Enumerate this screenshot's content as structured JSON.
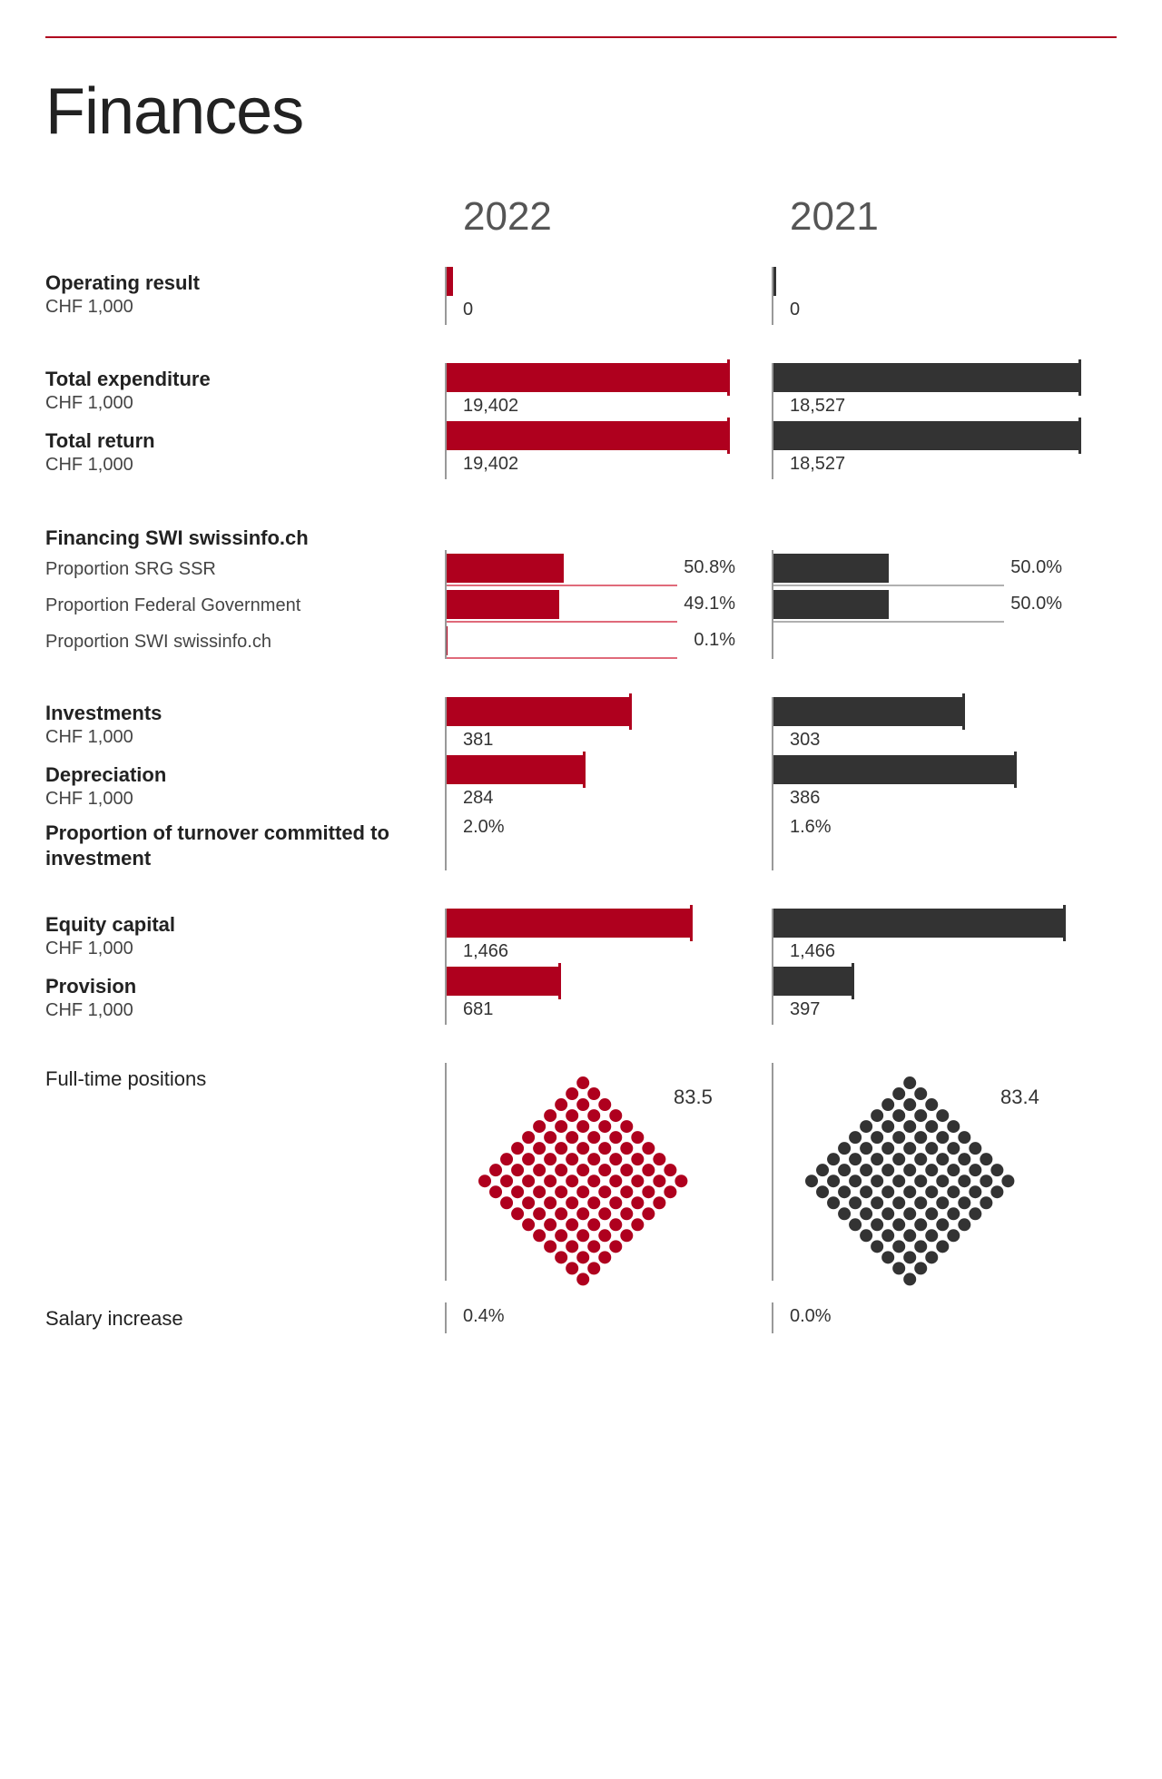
{
  "title": "Finances",
  "years": {
    "current": "2022",
    "prior": "2021"
  },
  "colors": {
    "current": "#af001e",
    "prior": "#333333",
    "rule": "#af001e",
    "axis": "#999999",
    "prop_base_current": "#e06a7a",
    "prop_base_prior": "#b0b0b0"
  },
  "unit_label": "CHF 1,000",
  "rows": {
    "operating_result": {
      "label": "Operating result",
      "current": {
        "display": "0",
        "width_pct": 2
      },
      "prior": {
        "display": "0",
        "width_pct": 1
      }
    },
    "total_expenditure": {
      "label": "Total expenditure",
      "current": {
        "display": "19,402",
        "width_pct": 92
      },
      "prior": {
        "display": "18,527",
        "width_pct": 100
      }
    },
    "total_return": {
      "label": "Total return",
      "current": {
        "display": "19,402",
        "width_pct": 92
      },
      "prior": {
        "display": "18,527",
        "width_pct": 100
      }
    },
    "financing_heading": "Financing SWI swissinfo.ch",
    "prop_srg": {
      "label": "Proportion SRG SSR",
      "current": {
        "display": "50.8%",
        "fill_pct": 50.8
      },
      "prior": {
        "display": "50.0%",
        "fill_pct": 50.0
      }
    },
    "prop_fed": {
      "label": "Proportion Federal Government",
      "current": {
        "display": "49.1%",
        "fill_pct": 49.1
      },
      "prior": {
        "display": "50.0%",
        "fill_pct": 50.0
      }
    },
    "prop_swi": {
      "label": "Proportion SWI swissinfo.ch",
      "current": {
        "display": "0.1%",
        "fill_pct": 0.1
      },
      "prior": {
        "display": "",
        "fill_pct": 0
      }
    },
    "investments": {
      "label": "Investments",
      "current": {
        "display": "381",
        "width_pct": 60
      },
      "prior": {
        "display": "303",
        "width_pct": 62
      }
    },
    "depreciation": {
      "label": "Depreciation",
      "current": {
        "display": "284",
        "width_pct": 45
      },
      "prior": {
        "display": "386",
        "width_pct": 79
      }
    },
    "turnover_investment": {
      "label": "Proportion of turnover committed to investment",
      "current_display": "2.0%",
      "prior_display": "1.6%"
    },
    "equity": {
      "label": "Equity capital",
      "current": {
        "display": "1,466",
        "width_pct": 80
      },
      "prior": {
        "display": "1,466",
        "width_pct": 95
      }
    },
    "provision": {
      "label": "Provision",
      "current": {
        "display": "681",
        "width_pct": 37
      },
      "prior": {
        "display": "397",
        "width_pct": 26
      }
    },
    "fte": {
      "label": "Full-time positions",
      "current_display": "83.5",
      "prior_display": "83.4",
      "dot_grid": 10,
      "dot_radius": 7,
      "dot_spacing": 17
    },
    "salary": {
      "label": "Salary increase",
      "current_display": "0.4%",
      "prior_display": "0.0%"
    }
  }
}
